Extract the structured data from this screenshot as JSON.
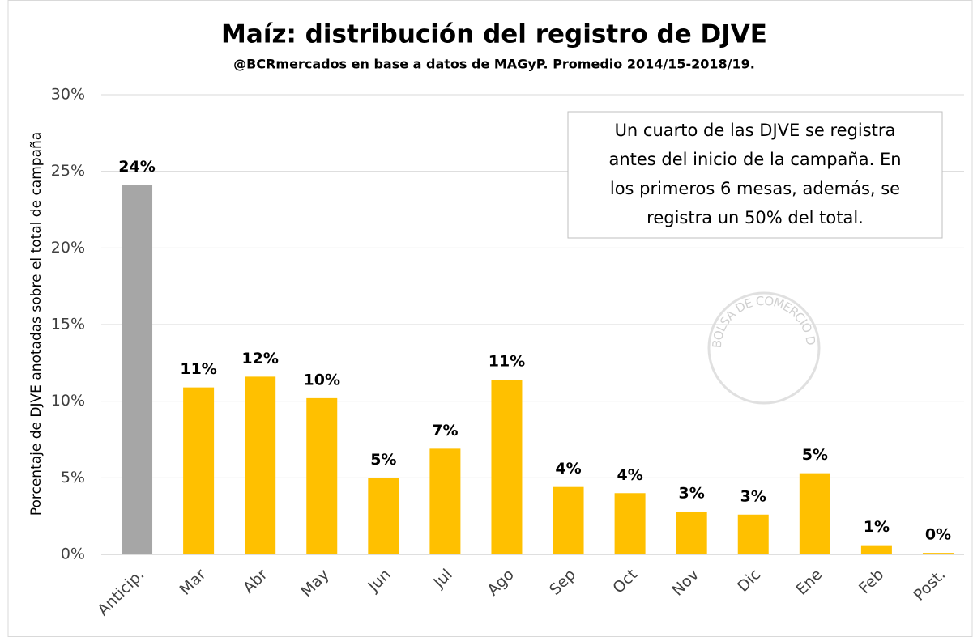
{
  "chart_data": {
    "type": "bar",
    "title": "Maíz: distribución del registro de DJVE",
    "subtitle": "@BCRmercados en base a datos de MAGyP. Promedio 2014/15-2018/19.",
    "y_label": "Porcentaje de DJVE anotadas sobre el total de campaña",
    "annotation": [
      "Un cuarto de las DJVE se registra",
      "antes del inicio de la campaña. En",
      "los primeros 6 mesas, además, se",
      "registra un 50% del total."
    ],
    "watermark": "BOLSA DE COMERCIO DE ROSARIO",
    "categories": [
      "Anticip.",
      "Mar",
      "Abr",
      "May",
      "Jun",
      "Jul",
      "Ago",
      "Sep",
      "Oct",
      "Nov",
      "Dic",
      "Ene",
      "Feb",
      "Post."
    ],
    "values": [
      24.1,
      10.9,
      11.6,
      10.2,
      5.0,
      6.9,
      11.4,
      4.4,
      4.0,
      2.8,
      2.6,
      5.3,
      0.6,
      0.1
    ],
    "value_labels": [
      "24%",
      "11%",
      "12%",
      "10%",
      "5%",
      "7%",
      "11%",
      "4%",
      "4%",
      "3%",
      "3%",
      "5%",
      "1%",
      "0%"
    ],
    "colors": [
      "#a6a6a6",
      "#ffc000",
      "#ffc000",
      "#ffc000",
      "#ffc000",
      "#ffc000",
      "#ffc000",
      "#ffc000",
      "#ffc000",
      "#ffc000",
      "#ffc000",
      "#ffc000",
      "#ffc000",
      "#ffc000"
    ],
    "ylim": [
      0,
      30
    ],
    "yticks": [
      {
        "value": 0,
        "label": "0%"
      },
      {
        "value": 5,
        "label": "5%"
      },
      {
        "value": 10,
        "label": "10%"
      },
      {
        "value": 15,
        "label": "15%"
      },
      {
        "value": 20,
        "label": "20%"
      },
      {
        "value": 25,
        "label": "25%"
      },
      {
        "value": 30,
        "label": "30%"
      }
    ],
    "grid": true
  }
}
